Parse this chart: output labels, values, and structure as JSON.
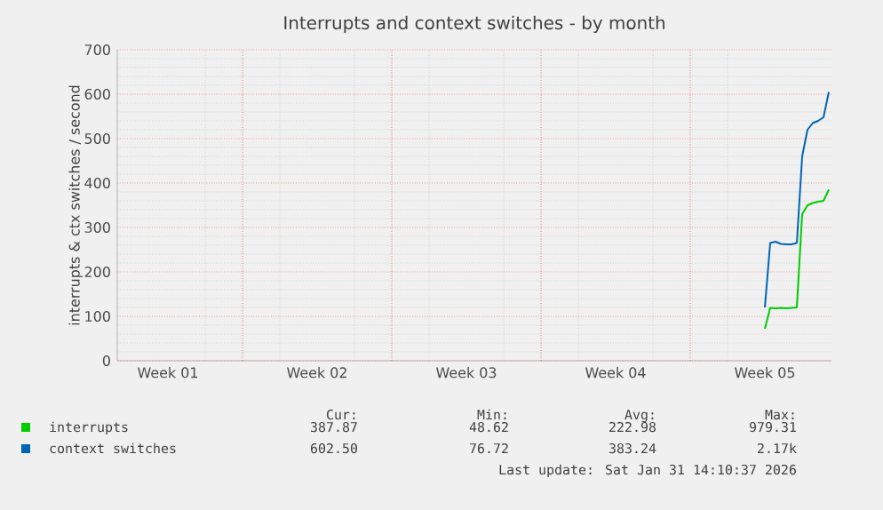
{
  "chart_data": {
    "type": "line",
    "title": "Interrupts and context switches - by month",
    "ylabel": "interrupts & ctx switches / second",
    "categories": [
      null,
      null,
      null,
      null,
      null,
      null,
      null,
      null,
      null,
      "Week 01",
      null,
      null,
      null,
      null,
      null,
      null,
      null,
      null,
      null,
      null,
      null,
      null,
      null,
      null,
      null,
      null,
      null,
      null,
      null,
      null,
      null,
      null,
      null,
      null,
      null,
      null,
      null,
      "Week 02",
      null,
      null,
      null,
      null,
      null,
      null,
      null,
      null,
      null,
      null,
      null,
      null,
      null,
      null,
      null,
      null,
      null,
      null,
      null,
      null,
      null,
      null,
      null,
      null,
      null,
      null,
      null,
      "Week 03",
      null,
      null,
      null,
      null,
      null,
      null,
      null,
      null,
      null,
      null,
      null,
      null,
      null,
      null,
      null,
      null,
      null,
      null,
      null,
      null,
      null,
      null,
      null,
      null,
      null,
      null,
      null,
      "Week 04",
      null,
      null,
      null,
      null,
      null,
      null,
      null,
      null,
      null,
      null,
      null,
      null,
      null,
      null,
      null,
      null,
      null,
      null,
      null,
      null,
      null,
      null,
      null,
      null,
      null,
      null,
      null,
      "Week 05",
      null,
      null,
      null,
      null,
      null,
      null,
      null,
      null,
      null,
      null,
      null,
      null
    ],
    "ylim": [
      0,
      700
    ],
    "yticks": [
      0,
      100,
      200,
      300,
      400,
      500,
      600,
      700
    ],
    "grid": true,
    "legend": "bottom",
    "series": [
      {
        "name": "interrupts",
        "color": "#00cc00",
        "values": [
          null,
          null,
          null,
          null,
          null,
          null,
          null,
          null,
          null,
          null,
          null,
          null,
          null,
          null,
          null,
          null,
          null,
          null,
          null,
          null,
          null,
          null,
          null,
          null,
          null,
          null,
          null,
          null,
          null,
          null,
          null,
          null,
          null,
          null,
          null,
          null,
          null,
          null,
          null,
          null,
          null,
          null,
          null,
          null,
          null,
          null,
          null,
          null,
          null,
          null,
          null,
          null,
          null,
          null,
          null,
          null,
          null,
          null,
          null,
          null,
          null,
          null,
          null,
          null,
          null,
          null,
          null,
          null,
          null,
          null,
          null,
          null,
          null,
          null,
          null,
          null,
          null,
          null,
          null,
          null,
          null,
          null,
          null,
          null,
          null,
          null,
          null,
          null,
          null,
          null,
          null,
          null,
          null,
          null,
          null,
          null,
          null,
          null,
          null,
          null,
          null,
          null,
          null,
          null,
          null,
          null,
          null,
          null,
          null,
          null,
          null,
          null,
          null,
          null,
          null,
          null,
          null,
          null,
          null,
          null,
          null,
          72,
          119,
          118,
          119,
          118,
          119,
          120,
          330,
          350,
          355,
          358,
          360,
          385
        ]
      },
      {
        "name": "context switches",
        "color": "#0066b3",
        "values": [
          null,
          null,
          null,
          null,
          null,
          null,
          null,
          null,
          null,
          null,
          null,
          null,
          null,
          null,
          null,
          null,
          null,
          null,
          null,
          null,
          null,
          null,
          null,
          null,
          null,
          null,
          null,
          null,
          null,
          null,
          null,
          null,
          null,
          null,
          null,
          null,
          null,
          null,
          null,
          null,
          null,
          null,
          null,
          null,
          null,
          null,
          null,
          null,
          null,
          null,
          null,
          null,
          null,
          null,
          null,
          null,
          null,
          null,
          null,
          null,
          null,
          null,
          null,
          null,
          null,
          null,
          null,
          null,
          null,
          null,
          null,
          null,
          null,
          null,
          null,
          null,
          null,
          null,
          null,
          null,
          null,
          null,
          null,
          null,
          null,
          null,
          null,
          null,
          null,
          null,
          null,
          null,
          null,
          null,
          null,
          null,
          null,
          null,
          null,
          null,
          null,
          null,
          null,
          null,
          null,
          null,
          null,
          null,
          null,
          null,
          null,
          null,
          null,
          null,
          null,
          null,
          null,
          null,
          null,
          null,
          null,
          120,
          265,
          268,
          263,
          262,
          262,
          265,
          460,
          520,
          535,
          540,
          548,
          605
        ]
      }
    ],
    "annotations": [
      "Cur:",
      "Min:",
      "Avg:",
      "Max:",
      "387.87",
      "48.62",
      "222.98",
      "979.31",
      "602.50",
      "76.72",
      "383.24",
      "2.17k",
      "Last update: Sat Jan 31 14:10:37 2026"
    ]
  }
}
